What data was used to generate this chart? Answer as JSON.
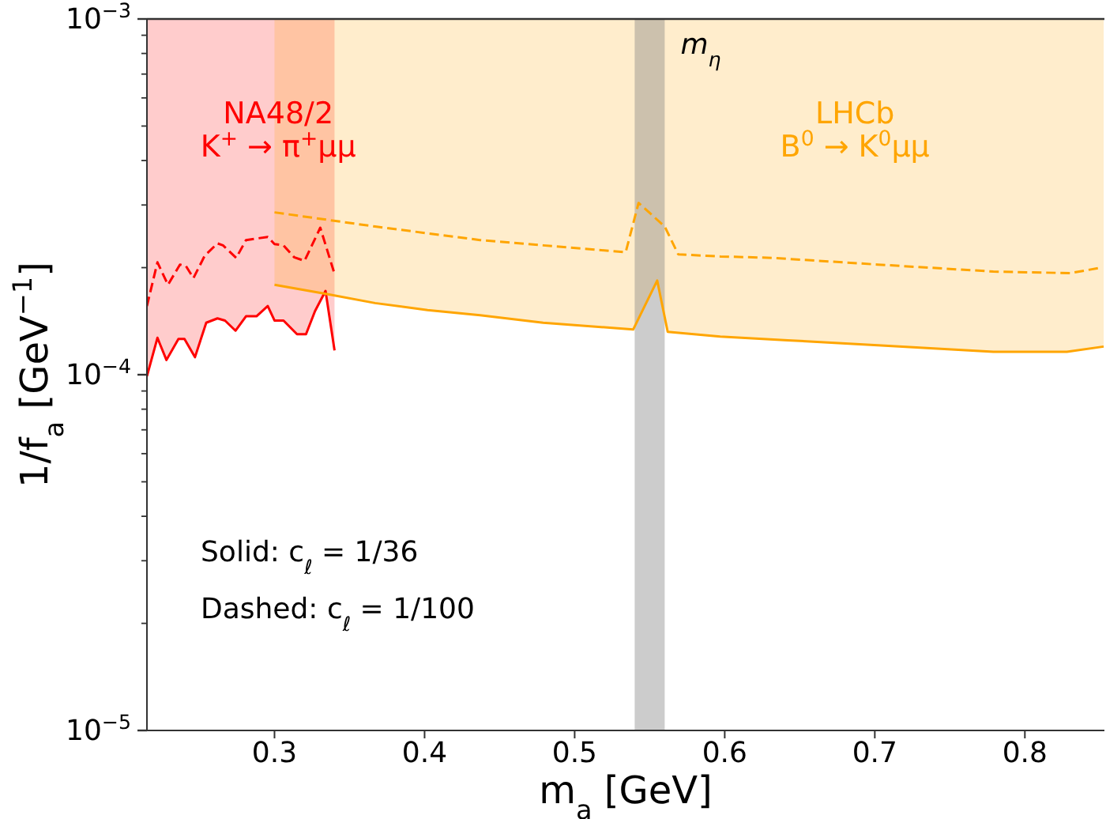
{
  "chart_data": {
    "type": "line",
    "xlabel": "m$_{a}$ [GeV]",
    "ylabel": "1/f$_{a}$ [GeV$^{−1}$]",
    "log": "y",
    "grid": false,
    "marker": "none",
    "xlim": [
      0.215,
      0.853
    ],
    "xticks": [
      0.3,
      0.4,
      0.5,
      0.6,
      0.7,
      0.8
    ],
    "ylim": [
      1e-05,
      0.001
    ],
    "yticks": [
      {
        "value": 1e-05,
        "label": "10$^{−5}$"
      },
      {
        "value": 2e-05,
        "label": null
      },
      {
        "value": 3e-05,
        "label": null
      },
      {
        "value": 4e-05,
        "label": null
      },
      {
        "value": 5e-05,
        "label": null
      },
      {
        "value": 6e-05,
        "label": null
      },
      {
        "value": 7e-05,
        "label": null
      },
      {
        "value": 8e-05,
        "label": null
      },
      {
        "value": 9e-05,
        "label": null
      },
      {
        "value": 0.0001,
        "label": "10$^{−4}$"
      },
      {
        "value": 0.0002,
        "label": null
      },
      {
        "value": 0.0003,
        "label": null
      },
      {
        "value": 0.0004,
        "label": null
      },
      {
        "value": 0.0005,
        "label": null
      },
      {
        "value": 0.0006,
        "label": null
      },
      {
        "value": 0.0007,
        "label": null
      },
      {
        "value": 0.0008,
        "label": null
      },
      {
        "value": 0.0009,
        "label": null
      },
      {
        "value": 0.001,
        "label": "10$^{−3}$"
      }
    ],
    "series": [
      {
        "name": "NA48/2\nK$^{+}$ → π$^{+}$μμ",
        "color": "#ff0000",
        "line_style": "solid",
        "x": [
          0.215,
          0.222,
          0.224,
          0.228,
          0.236,
          0.24,
          0.247,
          0.2545,
          0.262,
          0.267,
          0.274,
          0.281,
          0.288,
          0.2955,
          0.3,
          0.306,
          0.315,
          0.321,
          0.327,
          0.334,
          0.34
        ],
        "values": [
          9.9e-05,
          0.000127,
          0.000121,
          0.00011,
          0.000126,
          0.000126,
          0.000112,
          0.00014,
          0.000144,
          0.000142,
          0.000133,
          0.000146,
          0.000146,
          0.000156,
          0.000142,
          0.000142,
          0.00013,
          0.00013,
          0.000151,
          0.000172,
          0.000117
        ],
        "lower": [
          9.9e-05,
          0.000127,
          0.000121,
          0.00011,
          0.000126,
          0.000126,
          0.000112,
          0.00014,
          0.000144,
          0.000142,
          0.000133,
          0.000146,
          0.000146,
          0.000156,
          0.000142,
          0.000142,
          0.00013,
          0.00013,
          0.000151,
          0.000172,
          0.000117
        ],
        "upper": [
          0.001,
          0.001,
          0.001,
          0.001,
          0.001,
          0.001,
          0.001,
          0.001,
          0.001,
          0.001,
          0.001,
          0.001,
          0.001,
          0.001,
          0.001,
          0.001,
          0.001,
          0.001,
          0.001,
          0.001,
          0.001
        ]
      },
      {
        "name": "LHCb\nB$^{0}$ → K$^{0}$μμ",
        "color": "#ffa500",
        "line_style": "solid",
        "x": [
          0.3,
          0.3336,
          0.367,
          0.402,
          0.437,
          0.479,
          0.539,
          0.555,
          0.562,
          0.597,
          0.642,
          0.702,
          0.779,
          0.828,
          0.8525
        ],
        "values": [
          0.000179,
          0.000169,
          0.000159,
          0.000152,
          0.000147,
          0.00014,
          0.000134,
          0.000184,
          0.000132,
          0.000128,
          0.000125,
          0.000121,
          0.000116,
          0.000116,
          0.00012
        ],
        "lower": [
          0.000179,
          0.000169,
          0.000159,
          0.000152,
          0.000147,
          0.00014,
          0.000134,
          0.000184,
          0.000132,
          0.000128,
          0.000125,
          0.000121,
          0.000116,
          0.000116,
          0.00012
        ],
        "upper": [
          0.001,
          0.001,
          0.001,
          0.001,
          0.001,
          0.001,
          0.001,
          0.001,
          0.001,
          0.001,
          0.001,
          0.001,
          0.001,
          0.001,
          0.001
        ]
      },
      {
        "color": "#ff0000",
        "line_style": "dashed",
        "x": [
          0.215,
          0.222,
          0.229,
          0.237,
          0.241,
          0.246,
          0.2535,
          0.262,
          0.2657,
          0.2745,
          0.281,
          0.2955,
          0.3,
          0.306,
          0.313,
          0.32,
          0.3305,
          0.34
        ],
        "values": [
          0.000156,
          0.000207,
          0.000179,
          0.000204,
          0.000202,
          0.000187,
          0.000216,
          0.000234,
          0.000231,
          0.000213,
          0.000239,
          0.000244,
          0.000233,
          0.000231,
          0.000214,
          0.000209,
          0.000259,
          0.000192
        ]
      },
      {
        "color": "#ffa500",
        "line_style": "dashed",
        "x": [
          0.3,
          0.367,
          0.437,
          0.479,
          0.534,
          0.5426,
          0.56,
          0.569,
          0.597,
          0.632,
          0.702,
          0.779,
          0.83,
          0.851
        ],
        "values": [
          0.000286,
          0.000261,
          0.000239,
          0.000231,
          0.000221,
          0.000304,
          0.000261,
          0.000218,
          0.000215,
          0.000213,
          0.000204,
          0.000195,
          0.000193,
          0.0002
        ]
      }
    ],
    "bands": [
      {
        "axis": "x",
        "from": 0.54,
        "to": 0.56,
        "label": "m$_{η}$",
        "color": "#808080"
      }
    ],
    "annotations": [
      "Solid: c$_{ℓ}$ = 1/36",
      "Dashed: c$_{ℓ}$ = 1/100"
    ]
  }
}
